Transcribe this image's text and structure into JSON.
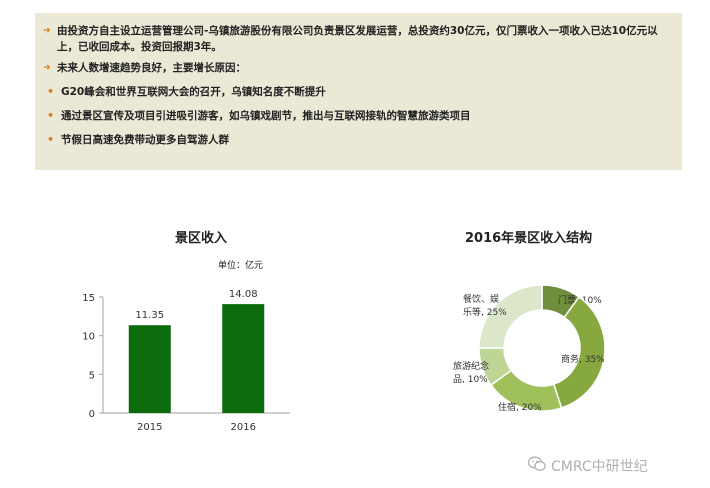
{
  "info_panel": {
    "bullets": [
      {
        "level": 1,
        "text": "由投资方自主设立运营管理公司-乌镇旅游股份有限公司负责景区发展运营，总投资约30亿元，仅门票收入一项收入已达10亿元以上，已收回成本。投资回报期3年。"
      },
      {
        "level": 1,
        "text": "未来人数增速趋势良好，主要增长原因："
      },
      {
        "level": 2,
        "text": "G20峰会和世界互联网大会的召开，乌镇知名度不断提升"
      },
      {
        "level": 2,
        "text": "通过景区宣传及项目引进吸引游客，如乌镇戏剧节，推出与互联网接轨的智慧旅游类项目"
      },
      {
        "level": 2,
        "text": "节假日高速免费带动更多自驾游人群"
      }
    ]
  },
  "watermark": "CMRC中研世纪",
  "colors": {
    "panel_bg": "#ebe8d6",
    "bullet_orange": "#e07b17",
    "bar_green": "#0c6b0c"
  },
  "chart_data": [
    {
      "type": "bar",
      "title": "景区收入",
      "unit_label": "单位：亿元",
      "categories": [
        "2015",
        "2016"
      ],
      "values": [
        11.35,
        14.08
      ],
      "value_labels": [
        "11.35",
        "14.08"
      ],
      "yticks": [
        "0",
        "5",
        "10",
        "15"
      ],
      "ylim": [
        0,
        15
      ],
      "color": "#0c6b0c",
      "grid": false
    },
    {
      "type": "pie",
      "style": "donut",
      "title": "2016年景区收入结构",
      "slices": [
        {
          "label": "门票, 10%",
          "value": 10,
          "color": "#6f8f3c"
        },
        {
          "label": "商务, 35%",
          "value": 35,
          "color": "#87a83e"
        },
        {
          "label": "住宿, 20%",
          "value": 20,
          "color": "#9fc05a"
        },
        {
          "label": "旅游纪念品, 10%",
          "value": 10,
          "color": "#bfd596"
        },
        {
          "label": "餐饮、娱乐等, 25%",
          "value": 25,
          "color": "#dce6c9"
        }
      ]
    }
  ]
}
